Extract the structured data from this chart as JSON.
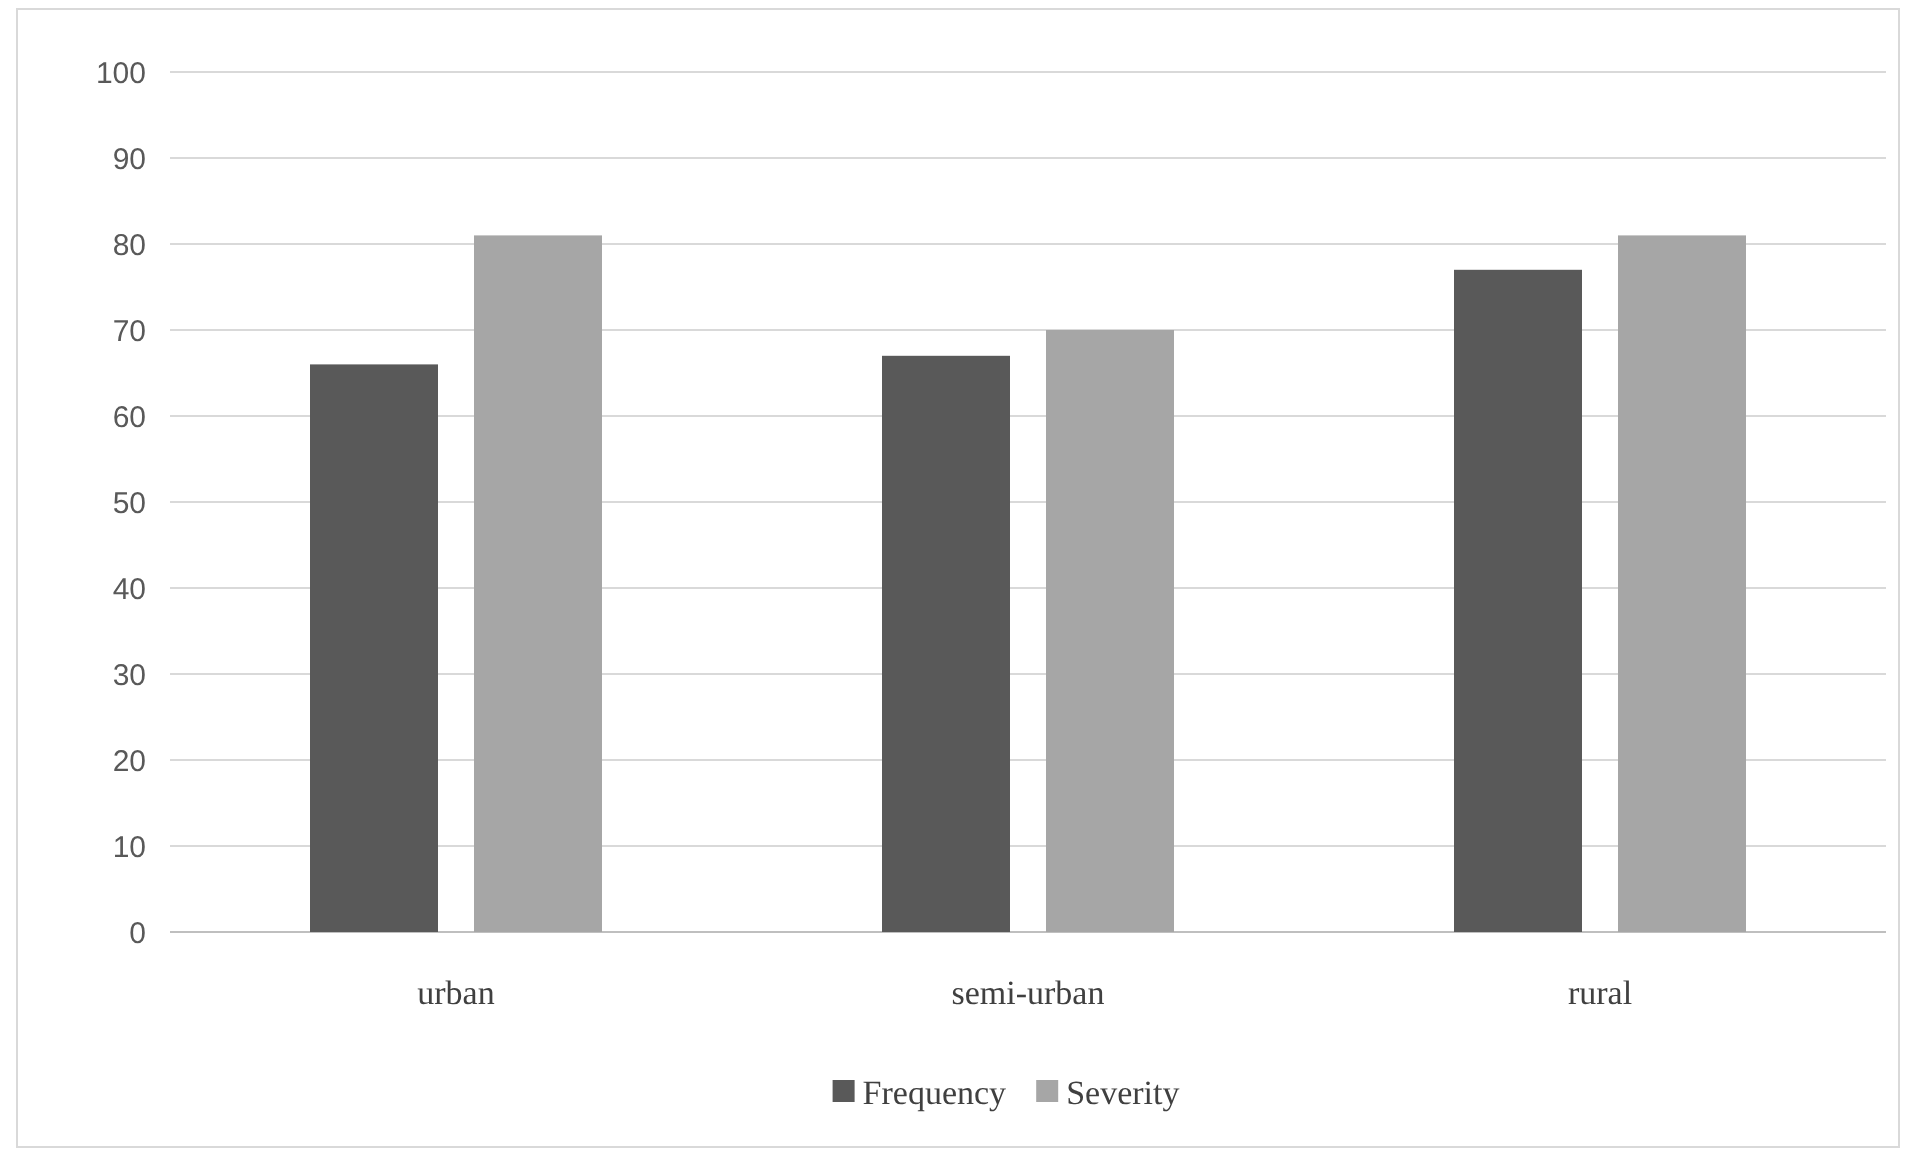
{
  "chart_data": {
    "type": "bar",
    "categories": [
      "urban",
      "semi-urban",
      "rural"
    ],
    "series": [
      {
        "name": "Frequency",
        "color": "#595959",
        "values": [
          66,
          67,
          77
        ]
      },
      {
        "name": "Severity",
        "color": "#a6a6a6",
        "values": [
          81,
          70,
          81
        ]
      }
    ],
    "ylim": [
      0,
      100
    ],
    "yticks": [
      0,
      10,
      20,
      30,
      40,
      50,
      60,
      70,
      80,
      90,
      100
    ],
    "grid": "y",
    "legend": "bottom"
  }
}
